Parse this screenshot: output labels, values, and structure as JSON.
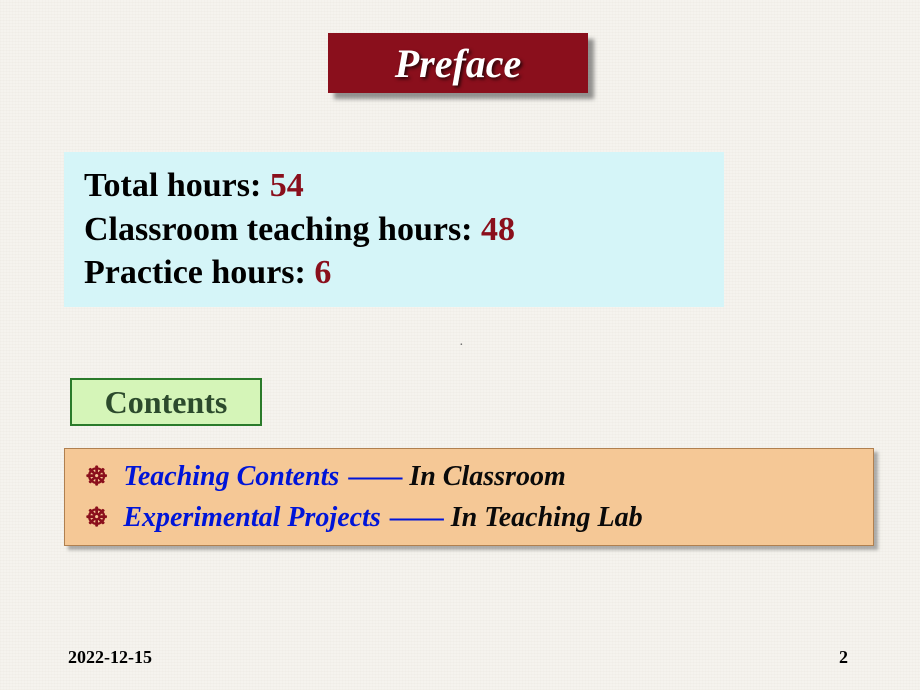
{
  "title": "Preface",
  "hours": {
    "total_label": "Total hours: ",
    "total_value": "54",
    "classroom_label": "Classroom teaching hours: ",
    "classroom_value": "48",
    "practice_label": "Practice hours: ",
    "practice_value": "6"
  },
  "dot": "·",
  "contents_label": "Contents",
  "items": [
    {
      "bullet": "☸",
      "title": "Teaching Contents ",
      "dash": "——",
      "location": " In Classroom"
    },
    {
      "bullet": "☸",
      "title": "Experimental Projects ",
      "dash": "——",
      "location": " In Teaching Lab"
    }
  ],
  "footer": {
    "date": "2022-12-15",
    "page": "2"
  },
  "style": {
    "page_bg": "#f5f3ee",
    "title_bg": "#8a0f1c",
    "title_color": "#ffffff",
    "title_fontsize": 40,
    "hours_bg": "#d5f5f8",
    "hours_fontsize": 34,
    "hours_label_color": "#000000",
    "hours_value_color": "#8a0f1c",
    "contents_bg": "#d5f5b8",
    "contents_border": "#2a7a2a",
    "contents_color": "#2c4a2c",
    "contents_fontsize": 32,
    "items_bg": "#f5c896",
    "items_border": "#b08050",
    "items_fontsize": 28,
    "bullet_color": "#8a0f1c",
    "item_title_color": "#0015d8",
    "item_loc_color": "#0a0a0a",
    "footer_fontsize": 18,
    "footer_color": "#000000"
  }
}
